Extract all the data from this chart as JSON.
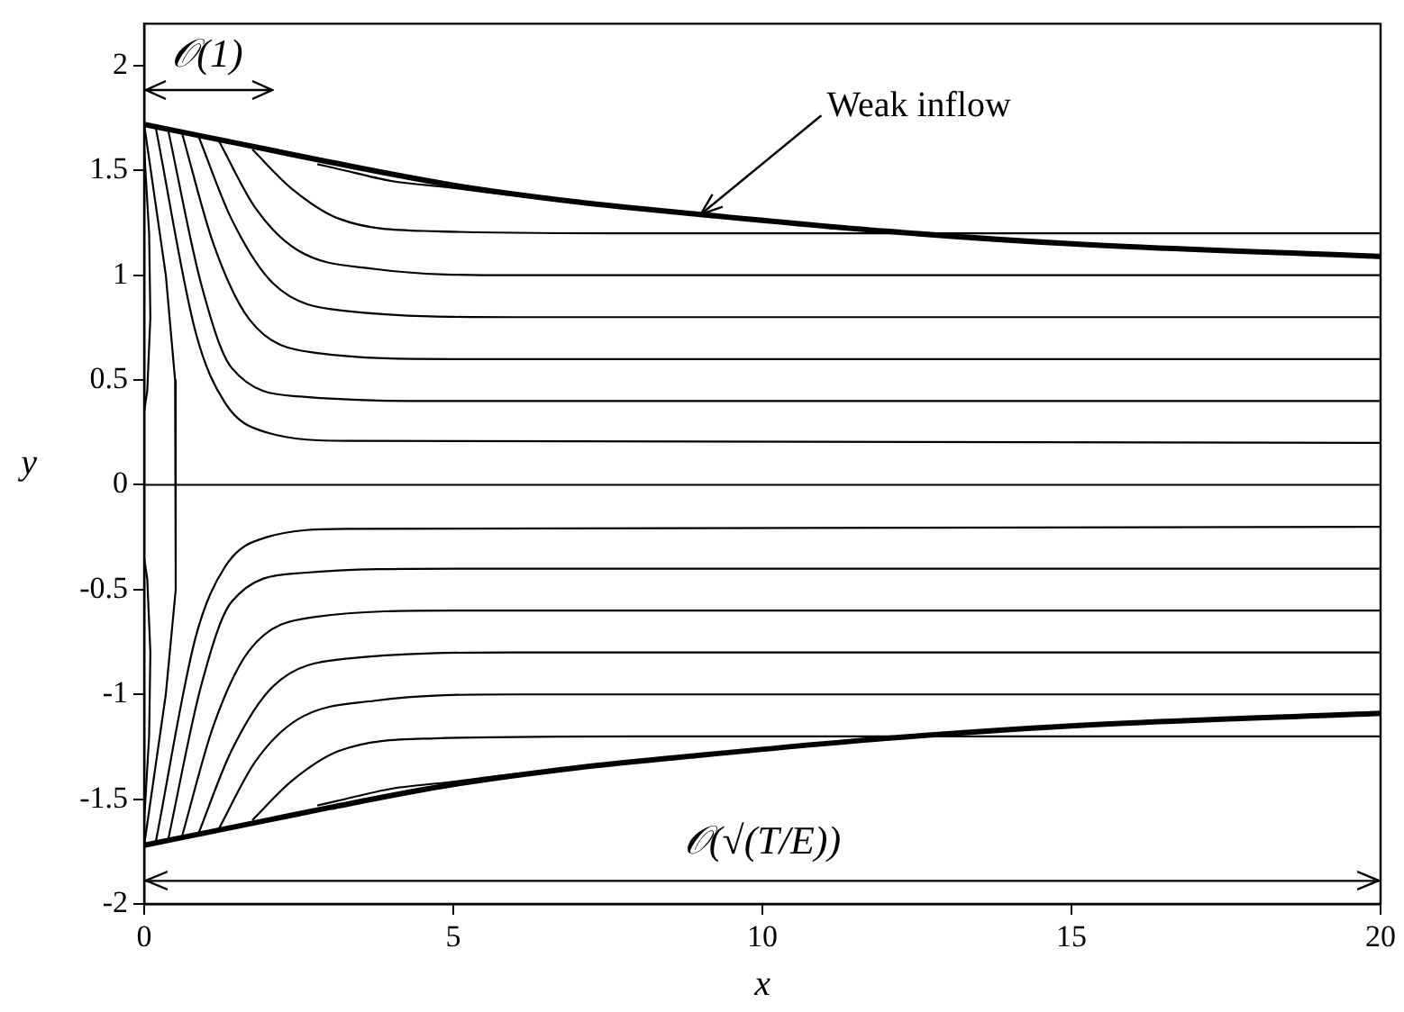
{
  "chart_data": {
    "type": "line",
    "xlabel": "x",
    "ylabel": "y",
    "xlim": [
      0,
      20
    ],
    "ylim": [
      -2,
      2.2
    ],
    "xticks": [
      0,
      5,
      10,
      15,
      20
    ],
    "yticks": [
      -2,
      -1.5,
      -1,
      -0.5,
      0,
      0.5,
      1,
      1.5,
      2
    ],
    "grid": false,
    "legend": false,
    "marker": "none",
    "line_style": "solid",
    "annotations": [
      "𝒪(1)",
      {
        "text": "Weak inflow",
        "x": 9,
        "y": 1.29
      }
    ],
    "ref_lines": [
      {
        "axis": "y",
        "value": -1.89,
        "label": "𝒪(√(T/E))"
      }
    ],
    "series": [
      {
        "color": "#000000",
        "x": [
          0,
          1,
          2,
          3,
          5,
          7,
          9,
          12,
          15,
          20
        ],
        "values": [
          1.72,
          1.66,
          1.6,
          1.54,
          1.43,
          1.35,
          1.29,
          1.21,
          1.15,
          1.09
        ]
      },
      {
        "color": "#000000",
        "x": [
          0,
          1,
          2,
          3,
          5,
          7,
          9,
          12,
          15,
          20
        ],
        "values": [
          -1.72,
          -1.66,
          -1.6,
          -1.54,
          -1.43,
          -1.35,
          -1.29,
          -1.21,
          -1.15,
          -1.09
        ]
      },
      {
        "color": "#000000",
        "x": [
          2.8,
          3.1,
          4,
          4.9,
          6,
          7
        ],
        "values": [
          1.53,
          1.51,
          1.45,
          1.42,
          1.38,
          1.35
        ]
      },
      {
        "color": "#000000",
        "x": [
          1.75,
          2.4,
          3.15,
          4.7,
          8,
          20
        ],
        "values": [
          1.6,
          1.41,
          1.27,
          1.21,
          1.2,
          1.2
        ]
      },
      {
        "color": "#000000",
        "x": [
          1.21,
          1.8,
          2.48,
          3.73,
          6,
          20
        ],
        "values": [
          1.64,
          1.32,
          1.12,
          1.03,
          1.0,
          1.0
        ]
      },
      {
        "color": "#000000",
        "x": [
          0.87,
          1.41,
          2.09,
          3.26,
          6,
          20
        ],
        "values": [
          1.67,
          1.27,
          0.96,
          0.83,
          0.8,
          0.8
        ]
      },
      {
        "color": "#000000",
        "x": [
          0.61,
          1.12,
          1.7,
          2.77,
          5,
          20
        ],
        "values": [
          1.68,
          1.15,
          0.79,
          0.63,
          0.6,
          0.6
        ]
      },
      {
        "color": "#000000",
        "x": [
          0.39,
          0.92,
          1.41,
          2.57,
          5,
          20
        ],
        "values": [
          1.69,
          0.96,
          0.56,
          0.42,
          0.4,
          0.4
        ]
      },
      {
        "color": "#000000",
        "x": [
          0.19,
          0.83,
          1.31,
          1.98,
          3.3,
          20
        ],
        "values": [
          1.7,
          0.73,
          0.39,
          0.25,
          0.21,
          0.2
        ]
      },
      {
        "color": "#000000",
        "x": [
          0,
          0.35,
          0.5,
          0.52,
          0.5,
          0.35,
          0
        ],
        "values": [
          1.72,
          1.0,
          0.5,
          0,
          -0.5,
          -1.0,
          -1.72
        ]
      },
      {
        "color": "#000000",
        "x": [
          0,
          0.08,
          0.1,
          0.05,
          0
        ],
        "values": [
          1.6,
          1.2,
          0.8,
          0.45,
          0.35
        ]
      },
      {
        "color": "#000000",
        "x": [
          0,
          20
        ],
        "values": [
          0,
          0
        ]
      },
      {
        "color": "#000000",
        "x": [
          0,
          0.08,
          0.1,
          0.05,
          0
        ],
        "values": [
          -1.6,
          -1.2,
          -0.8,
          -0.45,
          -0.35
        ]
      },
      {
        "color": "#000000",
        "x": [
          0.19,
          0.83,
          1.31,
          1.98,
          3.3,
          20
        ],
        "values": [
          -1.7,
          -0.73,
          -0.39,
          -0.25,
          -0.21,
          -0.2
        ]
      },
      {
        "color": "#000000",
        "x": [
          0.39,
          0.92,
          1.41,
          2.57,
          5,
          20
        ],
        "values": [
          -1.69,
          -0.96,
          -0.56,
          -0.42,
          -0.4,
          -0.4
        ]
      },
      {
        "color": "#000000",
        "x": [
          0.61,
          1.12,
          1.7,
          2.77,
          5,
          20
        ],
        "values": [
          -1.68,
          -1.15,
          -0.79,
          -0.63,
          -0.6,
          -0.6
        ]
      },
      {
        "color": "#000000",
        "x": [
          0.87,
          1.41,
          2.09,
          3.26,
          6,
          20
        ],
        "values": [
          -1.67,
          -1.27,
          -0.96,
          -0.83,
          -0.8,
          -0.8
        ]
      },
      {
        "color": "#000000",
        "x": [
          1.21,
          1.8,
          2.48,
          3.73,
          6,
          20
        ],
        "values": [
          -1.64,
          -1.32,
          -1.12,
          -1.03,
          -1.0,
          -1.0
        ]
      },
      {
        "color": "#000000",
        "x": [
          1.75,
          2.4,
          3.15,
          4.7,
          8,
          20
        ],
        "values": [
          -1.6,
          -1.41,
          -1.27,
          -1.21,
          -1.2,
          -1.2
        ]
      },
      {
        "color": "#000000",
        "x": [
          2.8,
          3.1,
          4,
          4.9,
          6,
          7
        ],
        "values": [
          -1.53,
          -1.51,
          -1.45,
          -1.42,
          -1.38,
          -1.35
        ]
      }
    ]
  }
}
